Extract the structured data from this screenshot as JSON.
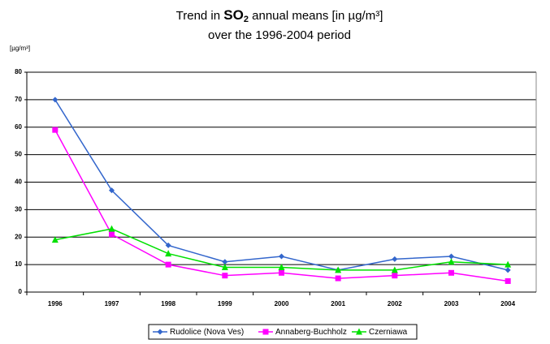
{
  "chart_data": {
    "type": "line",
    "title": [
      "Trend in ",
      "SO",
      "2",
      " annual means [in µg/m³]"
    ],
    "subtitle": "over the 1996-2004 period",
    "y_label": "[µg/m³]",
    "categories": [
      "1996",
      "1997",
      "1998",
      "1999",
      "2000",
      "2001",
      "2002",
      "2003",
      "2004"
    ],
    "series": [
      {
        "name": "Rudolice (Nova Ves)",
        "color": "#3366cc",
        "marker": "diamond",
        "values": [
          70,
          37,
          17,
          11,
          13,
          8,
          12,
          13,
          8
        ]
      },
      {
        "name": "Annaberg-Buchholz",
        "color": "#ff00ff",
        "marker": "square",
        "values": [
          59,
          21,
          10,
          6,
          7,
          5,
          6,
          7,
          4
        ]
      },
      {
        "name": "Czerniawa",
        "color": "#00e000",
        "marker": "triangle",
        "values": [
          19,
          23,
          14,
          9,
          9,
          8,
          8,
          11,
          10
        ]
      }
    ],
    "ylim": [
      0,
      80
    ],
    "yticks": [
      0,
      10,
      20,
      30,
      40,
      50,
      60,
      70,
      80
    ],
    "grid": true,
    "legend": "bottom"
  }
}
